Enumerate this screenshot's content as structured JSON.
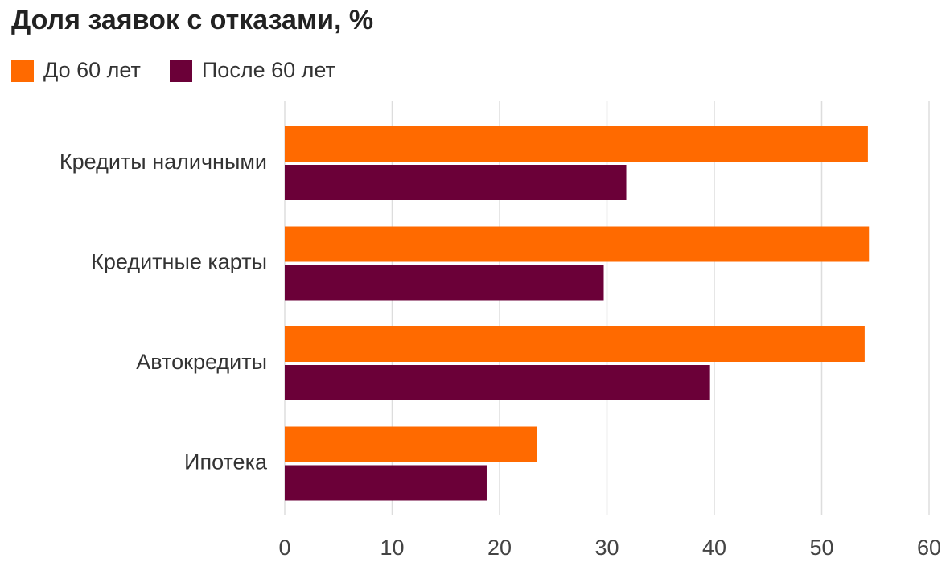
{
  "chart_data": {
    "type": "bar",
    "orientation": "horizontal",
    "title": "Доля заявок с отказами, %",
    "categories": [
      "Кредиты наличными",
      "Кредитные карты",
      "Автокредиты",
      "Ипотека"
    ],
    "series": [
      {
        "name": "До 60 лет",
        "color": "#ff6a00",
        "values": [
          54.3,
          54.4,
          54.0,
          23.5
        ]
      },
      {
        "name": "После 60 лет",
        "color": "#6b0038",
        "values": [
          31.8,
          29.7,
          39.6,
          18.8
        ]
      }
    ],
    "xlim": [
      0,
      60
    ],
    "x_ticks": [
      "0",
      "10",
      "20",
      "30",
      "40",
      "50",
      "60"
    ],
    "xlabel": "",
    "ylabel": "",
    "grid": "vertical",
    "legend_position": "top-left"
  }
}
